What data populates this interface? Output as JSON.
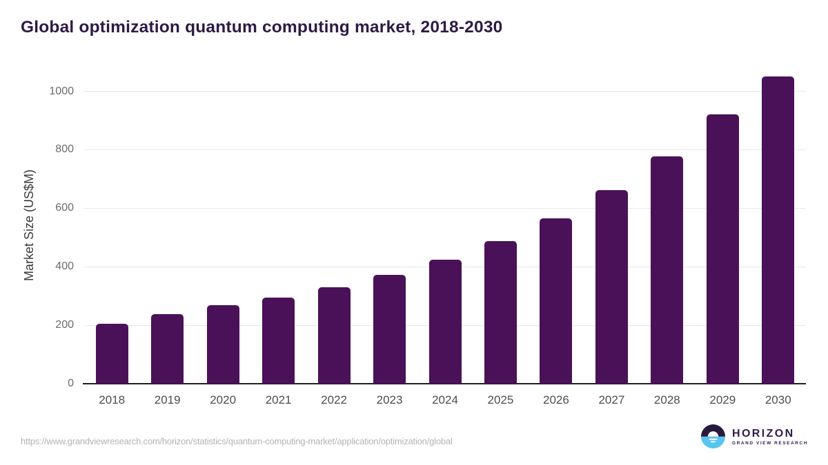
{
  "page": {
    "title": "Global optimization quantum computing market, 2018-2030"
  },
  "chart_data": {
    "type": "bar",
    "title": "Global optimization quantum computing market, 2018-2030",
    "categories": [
      "2018",
      "2019",
      "2020",
      "2021",
      "2022",
      "2023",
      "2024",
      "2025",
      "2026",
      "2027",
      "2028",
      "2029",
      "2030"
    ],
    "values": [
      205,
      238,
      268,
      295,
      330,
      372,
      424,
      488,
      565,
      662,
      778,
      922,
      1050
    ],
    "xlabel": "",
    "ylabel": "Market Size (US$M)",
    "ylim": [
      0,
      1083
    ],
    "yticks": [
      0,
      200,
      400,
      600,
      800,
      1000
    ],
    "grid": true,
    "legend_position": "none",
    "bar_color": "#4a1158"
  },
  "footer": {
    "source_url": "https://www.grandviewresearch.com/horizon/statistics/quantum-computing-market/application/optimization/global",
    "brand": {
      "name": "HORIZON",
      "subtitle": "GRAND VIEW RESEARCH"
    }
  },
  "colors": {
    "title_text": "#2e1a45",
    "bar": "#4a1158",
    "axis_line": "#1f1f1f",
    "gridline": "#e7e7e7",
    "y_tick_text": "#6b6b6b",
    "x_tick_text": "#4d4d4d",
    "axis_title_text": "#3a3a3a",
    "source_text": "#b3b3b3",
    "logo_dark": "#2a1a3e",
    "logo_blue": "#58c4f0"
  }
}
